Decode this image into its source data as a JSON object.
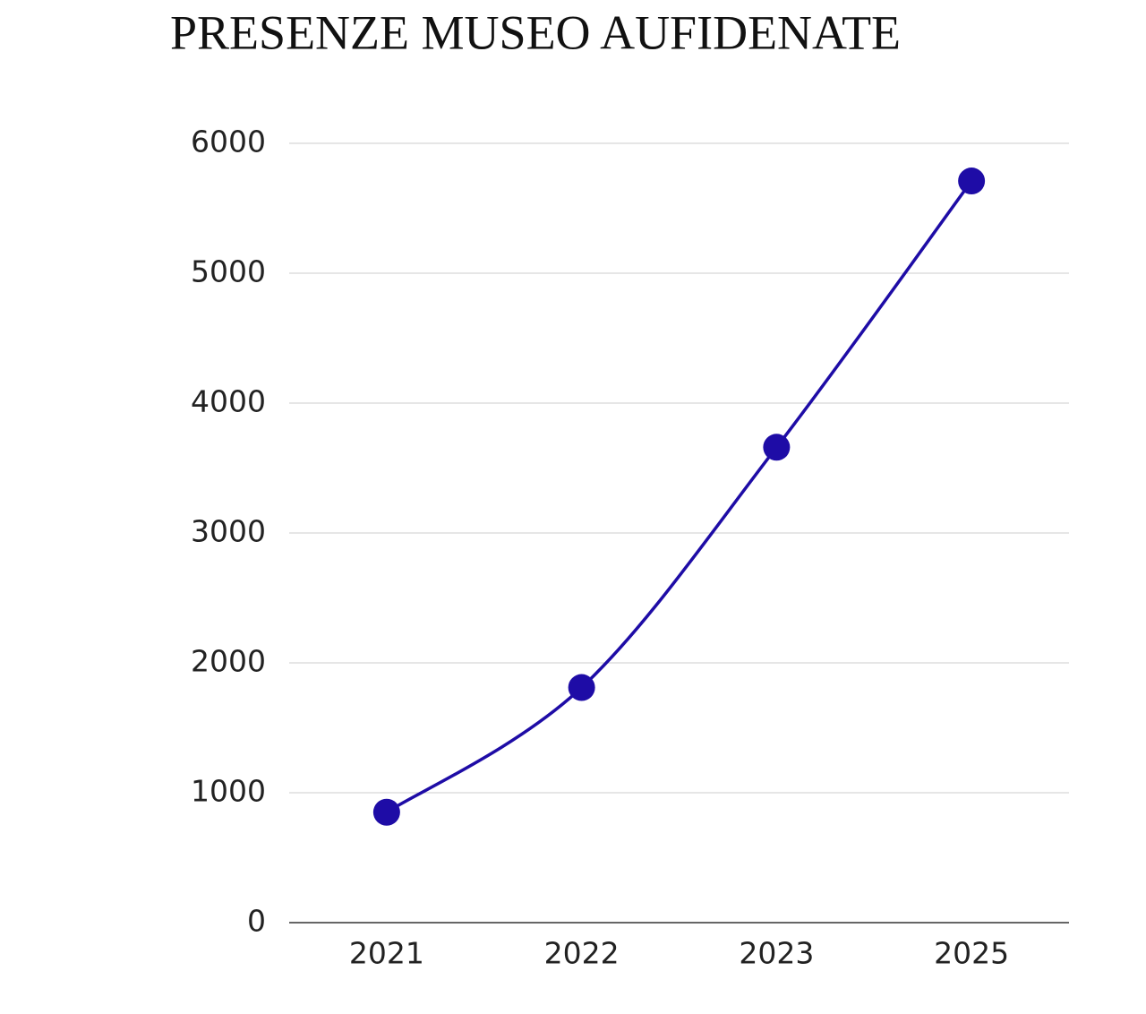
{
  "chart_data": {
    "type": "line",
    "title": "PRESENZE MUSEO AUFIDENATE",
    "categories": [
      "2021",
      "2022",
      "2023",
      "2025"
    ],
    "values": [
      850,
      1810,
      3660,
      5710
    ],
    "color": "#1e0ca6",
    "smooth": true,
    "markers": true,
    "ylim": [
      0,
      6000
    ],
    "yticks": [
      0,
      1000,
      2000,
      3000,
      4000,
      5000,
      6000
    ],
    "grid": true
  }
}
